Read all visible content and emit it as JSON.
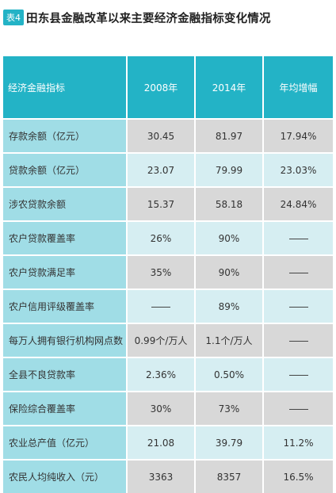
{
  "header": {
    "badge": "表4",
    "title": "田东县金融改革以来主要经济金融指标变化情况"
  },
  "table": {
    "columns": [
      "经济金融指标",
      "2008年",
      "2014年",
      "年均增幅"
    ],
    "rows": [
      {
        "label": "存款余额（亿元）",
        "y2008": "30.45",
        "y2014": "81.97",
        "growth": "17.94%"
      },
      {
        "label": "贷款余额（亿元）",
        "y2008": "23.07",
        "y2014": "79.99",
        "growth": "23.03%"
      },
      {
        "label": "涉农贷款余额",
        "y2008": "15.37",
        "y2014": "58.18",
        "growth": "24.84%"
      },
      {
        "label": "农户贷款覆盖率",
        "y2008": "26%",
        "y2014": "90%",
        "growth": ""
      },
      {
        "label": "农户贷款满足率",
        "y2008": "35%",
        "y2014": "90%",
        "growth": ""
      },
      {
        "label": "农户信用评级覆盖率",
        "y2008": "",
        "y2014": "89%",
        "growth": ""
      },
      {
        "label": "每万人拥有银行机构网点数",
        "y2008": "0.99个/万人",
        "y2014": "1.1个/万人",
        "growth": ""
      },
      {
        "label": "全县不良贷款率",
        "y2008": "2.36%",
        "y2014": "0.50%",
        "growth": ""
      },
      {
        "label": "保险综合覆盖率",
        "y2008": "30%",
        "y2014": "73%",
        "growth": ""
      },
      {
        "label": "农业总产值（亿元）",
        "y2008": "21.08",
        "y2014": "39.79",
        "growth": "11.2%"
      },
      {
        "label": "农民人均纯收入（元）",
        "y2008": "3363",
        "y2014": "8357",
        "growth": "16.5%"
      }
    ]
  }
}
